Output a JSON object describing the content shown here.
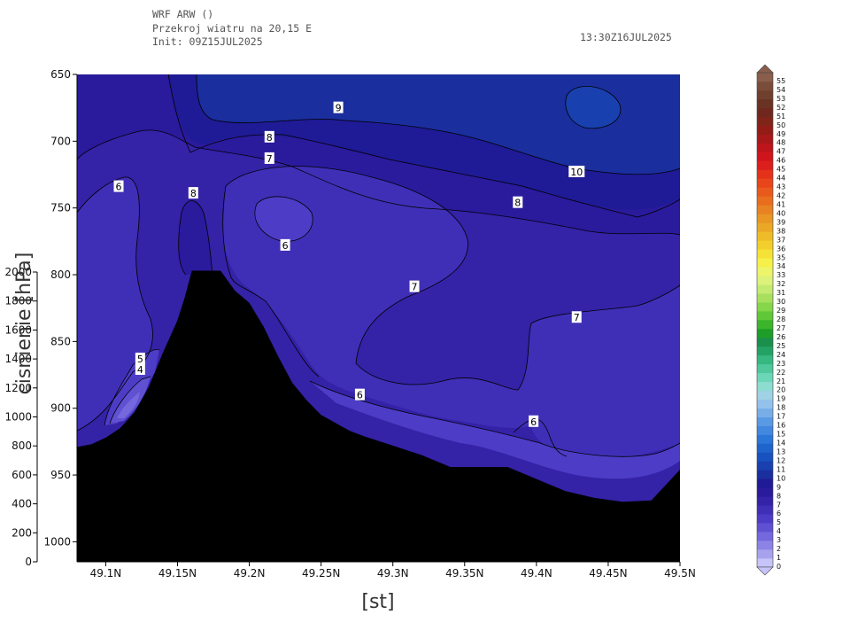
{
  "header": {
    "line1": "WRF ARW ()",
    "line2": "Przekroj wiatru na 20,15 E",
    "line3": "Init: 09Z15JUL2025",
    "valid_time": "13:30Z16JUL2025"
  },
  "chart_data": {
    "type": "heatmap",
    "title": "Przekroj wiatru na 20,15 E",
    "xlabel": "[st]",
    "ylabel": "cisnienie [hPa]",
    "x_ticks": [
      "49.1N",
      "49.15N",
      "49.2N",
      "49.25N",
      "49.3N",
      "49.35N",
      "49.4N",
      "49.45N",
      "49.5N"
    ],
    "x_tick_values": [
      49.1,
      49.15,
      49.2,
      49.25,
      49.3,
      49.35,
      49.4,
      49.45,
      49.5
    ],
    "xlim": [
      49.08,
      49.5
    ],
    "pressure_ticks": [
      650,
      700,
      750,
      800,
      850,
      900,
      950,
      1000
    ],
    "pressure_range_hpa": [
      650,
      1015
    ],
    "height_ticks": [
      0,
      200,
      400,
      600,
      800,
      1000,
      1200,
      1400,
      1600,
      1800,
      2000
    ],
    "height_range_m": [
      0,
      2000
    ],
    "contour_labels": [
      {
        "text": "9",
        "lat": 49.262,
        "p": 675
      },
      {
        "text": "8",
        "lat": 49.214,
        "p": 697
      },
      {
        "text": "7",
        "lat": 49.214,
        "p": 713
      },
      {
        "text": "10",
        "lat": 49.428,
        "p": 723
      },
      {
        "text": "6",
        "lat": 49.109,
        "p": 734
      },
      {
        "text": "8",
        "lat": 49.161,
        "p": 739
      },
      {
        "text": "8",
        "lat": 49.387,
        "p": 746
      },
      {
        "text": "6",
        "lat": 49.225,
        "p": 778
      },
      {
        "text": "7",
        "lat": 49.315,
        "p": 809
      },
      {
        "text": "7",
        "lat": 49.428,
        "p": 832
      },
      {
        "text": "5",
        "lat": 49.124,
        "p": 863
      },
      {
        "text": "4",
        "lat": 49.124,
        "p": 871
      },
      {
        "text": "6",
        "lat": 49.277,
        "p": 890
      },
      {
        "text": "6",
        "lat": 49.398,
        "p": 910
      }
    ],
    "terrain": {
      "lat": [
        49.08,
        49.09,
        49.1,
        49.11,
        49.12,
        49.13,
        49.14,
        49.15,
        49.155,
        49.16,
        49.165,
        49.17,
        49.175,
        49.18,
        49.19,
        49.2,
        49.21,
        49.22,
        49.23,
        49.24,
        49.25,
        49.26,
        49.27,
        49.28,
        49.3,
        49.32,
        49.34,
        49.36,
        49.38,
        49.4,
        49.42,
        49.44,
        49.46,
        49.48,
        49.5
      ],
      "p": [
        929,
        927,
        922,
        915,
        903,
        884,
        858,
        834,
        817,
        797,
        797,
        797,
        797,
        797,
        812,
        821,
        839,
        861,
        881,
        894,
        905,
        911,
        917,
        921,
        928,
        935,
        944,
        944,
        944,
        953,
        962,
        967,
        970,
        969,
        946
      ]
    },
    "colorbar": {
      "levels": [
        0,
        1,
        2,
        3,
        4,
        5,
        6,
        7,
        8,
        9,
        10,
        11,
        12,
        13,
        14,
        15,
        16,
        17,
        18,
        19,
        20,
        21,
        22,
        23,
        24,
        25,
        26,
        27,
        28,
        29,
        30,
        31,
        32,
        33,
        34,
        35,
        36,
        37,
        38,
        39,
        40,
        41,
        42,
        43,
        44,
        45,
        46,
        47,
        48,
        49,
        50,
        51,
        52,
        53,
        54,
        55
      ],
      "colors": [
        "#c6c4f8",
        "#a8a2ee",
        "#8d83e5",
        "#7468dc",
        "#6050d2",
        "#4d3cc6",
        "#3f2fb6",
        "#3422a7",
        "#2a1a9c",
        "#1f1a95",
        "#1a2e9e",
        "#1840ae",
        "#1952c0",
        "#1e64cc",
        "#2b76d8",
        "#4288df",
        "#5a9ae4",
        "#78aee8",
        "#94c2ec",
        "#9ed2e4",
        "#8cdcd0",
        "#6ed6b8",
        "#4ec89c",
        "#36b880",
        "#24a264",
        "#1a904c",
        "#1e9e28",
        "#3cb42c",
        "#60c838",
        "#86d64a",
        "#a8e05e",
        "#c4ea72",
        "#dcf27a",
        "#eef46a",
        "#f6f04a",
        "#f6e236",
        "#f2cf2c",
        "#eebc28",
        "#eaa826",
        "#e89624",
        "#e88222",
        "#e86e1e",
        "#e85a1c",
        "#e8461a",
        "#e4321a",
        "#dc1e1c",
        "#d0141c",
        "#be141c",
        "#a8181a",
        "#941c18",
        "#80241a",
        "#70281e",
        "#6a3224",
        "#70402e",
        "#7a4c3a",
        "#8a5e4c"
      ]
    }
  }
}
